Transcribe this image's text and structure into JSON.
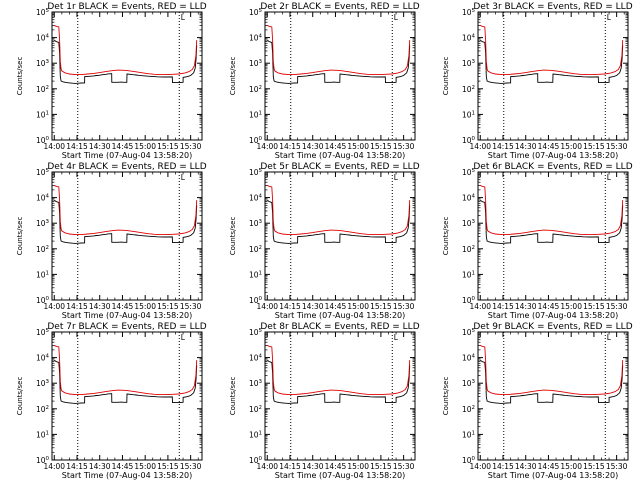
{
  "chart_data": {
    "type": "line",
    "layout": "3x3 grid of panels",
    "y_scale": "log",
    "ylim": [
      1,
      100000
    ],
    "y_ticks": [
      {
        "value": 1,
        "base": "10",
        "exp": "0"
      },
      {
        "value": 10,
        "base": "10",
        "exp": "1"
      },
      {
        "value": 100,
        "base": "10",
        "exp": "2"
      },
      {
        "value": 1000,
        "base": "10",
        "exp": "3"
      },
      {
        "value": 10000,
        "base": "10",
        "exp": "4"
      },
      {
        "value": 100000,
        "base": "10",
        "exp": "5"
      }
    ],
    "x_ticks": [
      {
        "minutes": 0,
        "label": "14:00"
      },
      {
        "minutes": 15,
        "label": "14:15"
      },
      {
        "minutes": 30,
        "label": "14:30"
      },
      {
        "minutes": 45,
        "label": "14:45"
      },
      {
        "minutes": 60,
        "label": "15:00"
      },
      {
        "minutes": 75,
        "label": "15:15"
      },
      {
        "minutes": 90,
        "label": "15:30"
      }
    ],
    "xlim_minutes": [
      -1.5,
      97.5
    ],
    "vertical_lines_minutes": [
      15.5,
      82.5
    ],
    "marker_label": "L",
    "marker_minutes": 83.5,
    "ylabel": "Counts/sec",
    "xlabel": "Start Time (07-Aug-04 13:58:20)",
    "colors": {
      "events": "#000000",
      "lld": "#e00000",
      "axes": "#000000"
    },
    "events_curve": [
      [
        0,
        8000
      ],
      [
        0.6,
        7500
      ],
      [
        1.2,
        7000
      ],
      [
        2,
        6800
      ],
      [
        3,
        6500
      ],
      [
        3.5,
        2500
      ],
      [
        4,
        300
      ],
      [
        4.5,
        200
      ],
      [
        6,
        185
      ],
      [
        8,
        175
      ],
      [
        10,
        170
      ],
      [
        12,
        165
      ],
      [
        14,
        162
      ],
      [
        16,
        165
      ],
      [
        18,
        168
      ],
      [
        20,
        170
      ],
      [
        20.05,
        300
      ],
      [
        22,
        305
      ],
      [
        24,
        310
      ],
      [
        26,
        320
      ],
      [
        28,
        330
      ],
      [
        30,
        340
      ],
      [
        32,
        355
      ],
      [
        34,
        370
      ],
      [
        36,
        385
      ],
      [
        37.9,
        390
      ],
      [
        38,
        180
      ],
      [
        40,
        180
      ],
      [
        42,
        180
      ],
      [
        44,
        182
      ],
      [
        46,
        180
      ],
      [
        47.9,
        180
      ],
      [
        48,
        380
      ],
      [
        50,
        370
      ],
      [
        52,
        355
      ],
      [
        54,
        345
      ],
      [
        56,
        335
      ],
      [
        58,
        325
      ],
      [
        60,
        318
      ],
      [
        62,
        310
      ],
      [
        64,
        305
      ],
      [
        66,
        300
      ],
      [
        68,
        295
      ],
      [
        70,
        292
      ],
      [
        72,
        290
      ],
      [
        74,
        290
      ],
      [
        76,
        290
      ],
      [
        77.9,
        292
      ],
      [
        78,
        175
      ],
      [
        80,
        175
      ],
      [
        82,
        175
      ],
      [
        84,
        175
      ],
      [
        85,
        180
      ],
      [
        85.05,
        280
      ],
      [
        88,
        300
      ],
      [
        90,
        330
      ],
      [
        92,
        420
      ],
      [
        93,
        650
      ],
      [
        93.6,
        1500
      ],
      [
        94,
        5000
      ]
    ],
    "lld_curve": [
      [
        0,
        30000
      ],
      [
        1,
        28000
      ],
      [
        2,
        27000
      ],
      [
        3,
        26000
      ],
      [
        3.5,
        8000
      ],
      [
        4,
        1200
      ],
      [
        4.5,
        600
      ],
      [
        5,
        500
      ],
      [
        7,
        420
      ],
      [
        10,
        380
      ],
      [
        14,
        360
      ],
      [
        18,
        360
      ],
      [
        22,
        380
      ],
      [
        26,
        400
      ],
      [
        30,
        430
      ],
      [
        34,
        470
      ],
      [
        38,
        510
      ],
      [
        42,
        540
      ],
      [
        46,
        530
      ],
      [
        50,
        500
      ],
      [
        54,
        460
      ],
      [
        58,
        420
      ],
      [
        62,
        390
      ],
      [
        66,
        370
      ],
      [
        70,
        360
      ],
      [
        74,
        360
      ],
      [
        78,
        370
      ],
      [
        82,
        380
      ],
      [
        86,
        410
      ],
      [
        89,
        470
      ],
      [
        91,
        560
      ],
      [
        92.5,
        800
      ],
      [
        93.5,
        2000
      ],
      [
        94,
        8000
      ]
    ],
    "panels": [
      {
        "title": "Det 1r BLACK = Events, RED = LLD"
      },
      {
        "title": "Det 2r BLACK = Events, RED = LLD"
      },
      {
        "title": "Det 3r BLACK = Events, RED = LLD"
      },
      {
        "title": "Det 4r BLACK = Events, RED = LLD"
      },
      {
        "title": "Det 5r BLACK = Events, RED = LLD"
      },
      {
        "title": "Det 6r BLACK = Events, RED = LLD"
      },
      {
        "title": "Det 7r BLACK = Events, RED = LLD"
      },
      {
        "title": "Det 8r BLACK = Events, RED = LLD"
      },
      {
        "title": "Det 9r BLACK = Events, RED = LLD"
      }
    ]
  }
}
